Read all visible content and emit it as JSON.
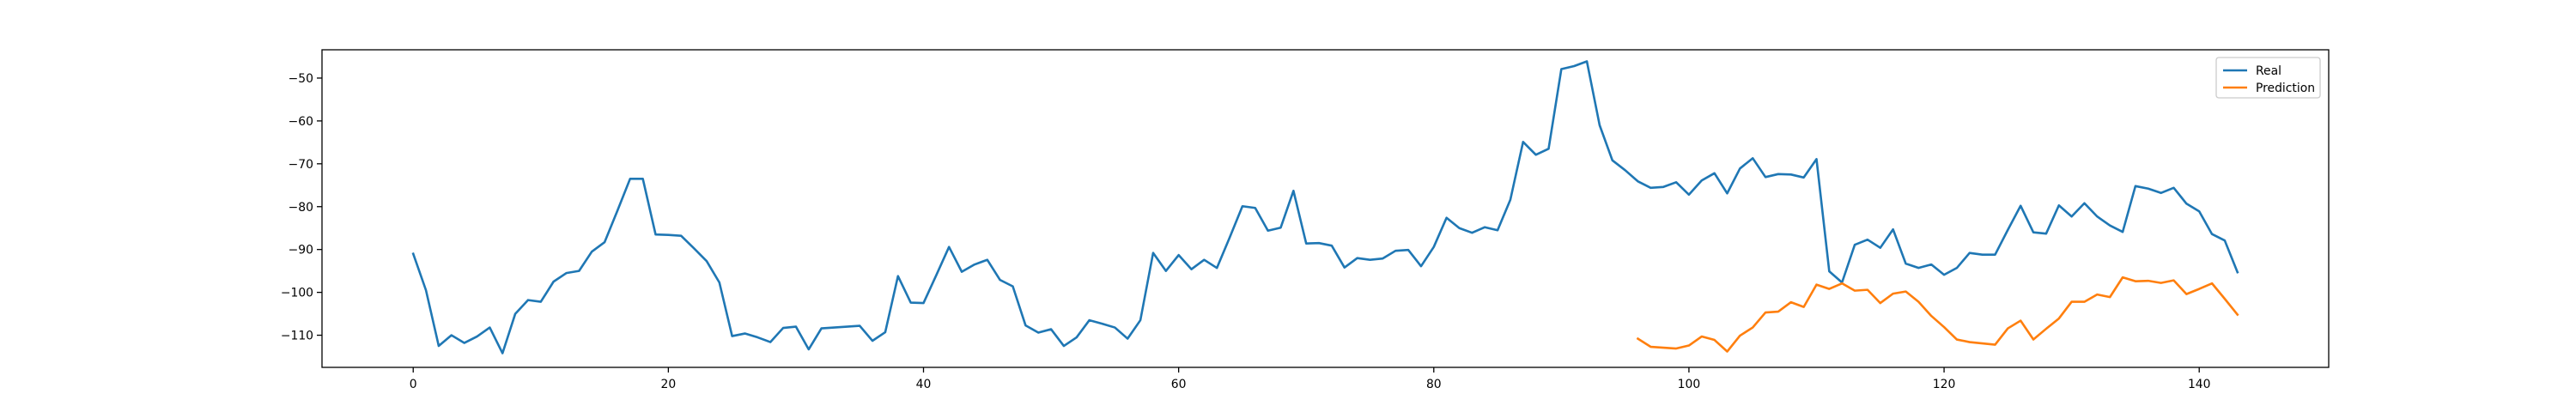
{
  "chart_data": {
    "type": "line",
    "title": "",
    "xlabel": "",
    "ylabel": "",
    "xlim": [
      -7.15,
      150.15
    ],
    "ylim": [
      -117.5,
      -43.4
    ],
    "xticks": [
      0,
      20,
      40,
      60,
      80,
      100,
      120,
      140
    ],
    "yticks": [
      -110,
      -100,
      -90,
      -80,
      -70,
      -60,
      -50
    ],
    "grid": false,
    "legend_position": "top-right",
    "series": [
      {
        "name": "Real",
        "color": "#1f77b4",
        "x_start": 0,
        "values": [
          -91,
          -99.5,
          -112.5,
          -110,
          -111.8,
          -110.3,
          -108.2,
          -114.2,
          -105,
          -101.8,
          -102.2,
          -97.5,
          -95.5,
          -95,
          -90.5,
          -88.3,
          -81,
          -73.5,
          -73.5,
          -86.5,
          -86.6,
          -86.8,
          -89.7,
          -92.7,
          -97.7,
          -110.2,
          -109.6,
          -110.5,
          -111.6,
          -108.3,
          -108,
          -113.3,
          -108.4,
          -108.2,
          -108,
          -107.8,
          -111.3,
          -109.3,
          -96.2,
          -102.4,
          -102.5,
          -96,
          -89.4,
          -95.2,
          -93.5,
          -92.4,
          -97.1,
          -98.6,
          -107.7,
          -109.4,
          -108.6,
          -112.5,
          -110.5,
          -106.5,
          -107.3,
          -108.2,
          -110.8,
          -106.5,
          -90.8,
          -95,
          -91.3,
          -94.6,
          -92.4,
          -94.3,
          -87.2,
          -79.9,
          -80.3,
          -85.6,
          -84.9,
          -76.3,
          -88.6,
          -88.5,
          -89.1,
          -94.2,
          -92,
          -92.4,
          -92.1,
          -90.3,
          -90.1,
          -93.9,
          -89.4,
          -82.6,
          -85,
          -86.1,
          -84.8,
          -85.5,
          -78.4,
          -64.9,
          -67.9,
          -66.5,
          -47.9,
          -47.2,
          -46.1,
          -61,
          -69.2,
          -71.5,
          -74.1,
          -75.6,
          -75.4,
          -74.3,
          -77.2,
          -73.9,
          -72.2,
          -76.9,
          -71.1,
          -68.7,
          -73.1,
          -72.4,
          -72.5,
          -73.2,
          -68.9,
          -95.1,
          -97.7,
          -88.9,
          -87.7,
          -89.6,
          -85.3,
          -93.3,
          -94.3,
          -93.5,
          -95.9,
          -94.3,
          -90.8,
          -91.2,
          -91.2,
          -85.4,
          -79.8,
          -86,
          -86.3,
          -79.7,
          -82.3,
          -79.2,
          -82.3,
          -84.4,
          -85.9,
          -75.2,
          -75.8,
          -76.8,
          -75.6,
          -79.3,
          -81.1,
          -86.4,
          -87.9,
          -95.3
        ]
      },
      {
        "name": "Prediction",
        "color": "#ff7f0e",
        "x_start": 96,
        "values": [
          -110.8,
          -112.7,
          -112.9,
          -113.1,
          -112.4,
          -110.3,
          -111.1,
          -113.8,
          -110.1,
          -108.2,
          -104.7,
          -104.5,
          -102.3,
          -103.4,
          -98.2,
          -99.2,
          -97.9,
          -99.6,
          -99.4,
          -102.5,
          -100.3,
          -99.8,
          -102.2,
          -105.5,
          -108.1,
          -111,
          -111.6,
          -111.9,
          -112.2,
          -108.4,
          -106.6,
          -111,
          -108.5,
          -106.1,
          -102.2,
          -102.2,
          -100.5,
          -101.1,
          -96.5,
          -97.4,
          -97.3,
          -97.8,
          -97.2,
          -100.4,
          -99.2,
          -97.9,
          -101.5,
          -105.2
        ]
      }
    ]
  }
}
